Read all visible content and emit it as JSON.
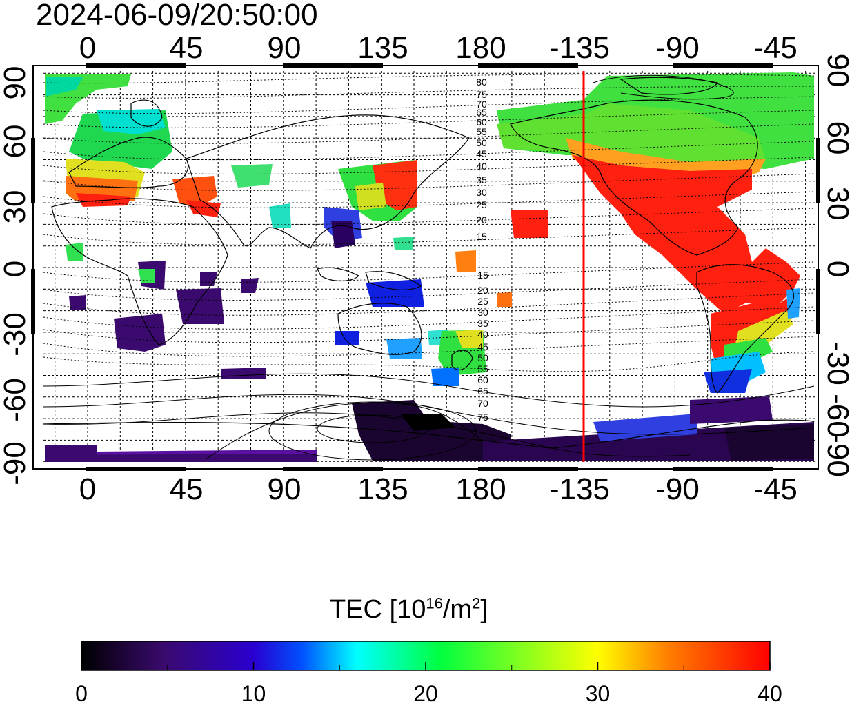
{
  "title": "2024-06-09/20:50:00",
  "map": {
    "lon_ticks": [
      "0",
      "45",
      "90",
      "135",
      "180",
      "-135",
      "-90",
      "-45"
    ],
    "lat_ticks_left": [
      "90",
      "60",
      "30",
      "0",
      "-30",
      "-60",
      "-90"
    ],
    "lat_ticks_right": [
      "90",
      "60",
      "30",
      "0",
      "-30 -60",
      "-90"
    ],
    "contour_labels_north": [
      "80",
      "75",
      "70",
      "65",
      "60",
      "55",
      "50",
      "45",
      "40",
      "35",
      "30",
      "25",
      "20",
      "15"
    ],
    "contour_labels_south": [
      "15",
      "20",
      "25",
      "30",
      "35",
      "40",
      "45",
      "50",
      "55",
      "60",
      "65",
      "70",
      "75"
    ],
    "terminator_line_color": "#ff0000",
    "terminator_longitude": -138
  },
  "colorbar": {
    "title_prefix": "TEC  [10",
    "title_sup1": "16",
    "title_mid": "/m",
    "title_sup2": "2",
    "title_suffix": "]",
    "min": 0,
    "max": 40,
    "tick_labels": [
      "0",
      "10",
      "20",
      "30",
      "40"
    ],
    "colors": [
      "#000000",
      "#3a0a6e",
      "#2a00d0",
      "#0050ff",
      "#00ffff",
      "#00ff40",
      "#ffff00",
      "#ff8000",
      "#ff0000"
    ]
  }
}
